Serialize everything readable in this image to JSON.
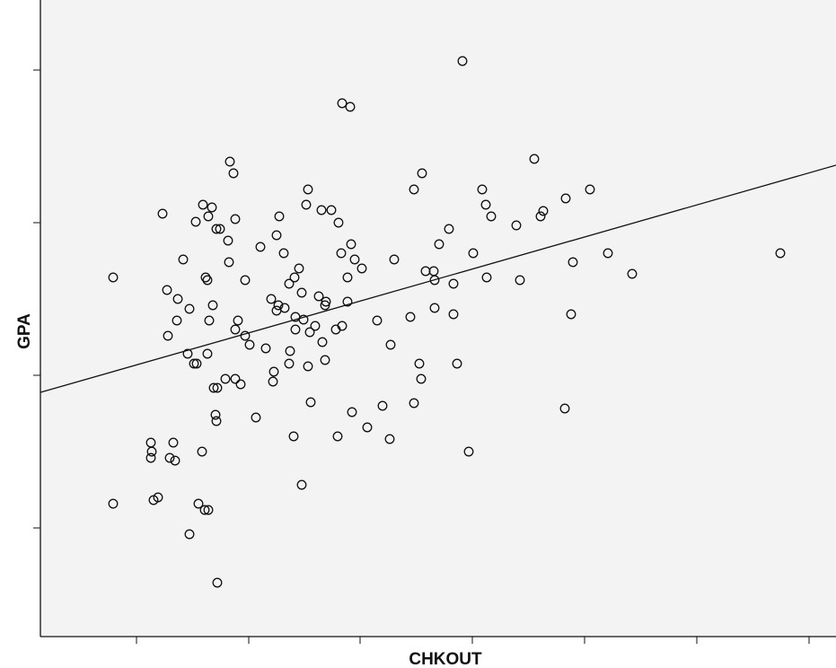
{
  "chart_data": {
    "type": "scatter",
    "xlabel": "CHKOUT",
    "ylabel": "GPA",
    "grid": false,
    "x_ticks": 7,
    "y_ticks": 4,
    "colors": {
      "plot_background": "#f3f3f3",
      "marker": "#111111",
      "line": "#111111"
    },
    "fit_line": {
      "points": [
        [
          45,
          437
        ],
        [
          931,
          184
        ]
      ]
    },
    "points": [
      [
        515,
        68
      ],
      [
        381,
        115
      ],
      [
        390,
        119
      ],
      [
        256,
        180
      ],
      [
        260,
        193
      ],
      [
        595,
        177
      ],
      [
        470,
        193
      ],
      [
        461,
        211
      ],
      [
        343,
        211
      ],
      [
        537,
        211
      ],
      [
        657,
        211
      ],
      [
        630,
        221
      ],
      [
        541,
        228
      ],
      [
        341,
        228
      ],
      [
        226,
        228
      ],
      [
        236,
        231
      ],
      [
        358,
        234
      ],
      [
        369,
        234
      ],
      [
        605,
        235
      ],
      [
        181,
        238
      ],
      [
        311,
        241
      ],
      [
        232,
        241
      ],
      [
        262,
        244
      ],
      [
        547,
        241
      ],
      [
        602,
        241
      ],
      [
        218,
        247
      ],
      [
        377,
        248
      ],
      [
        575,
        251
      ],
      [
        241,
        255
      ],
      [
        245,
        255
      ],
      [
        500,
        255
      ],
      [
        308,
        262
      ],
      [
        254,
        268
      ],
      [
        391,
        272
      ],
      [
        489,
        272
      ],
      [
        290,
        275
      ],
      [
        380,
        282
      ],
      [
        316,
        282
      ],
      [
        527,
        282
      ],
      [
        677,
        282
      ],
      [
        869,
        282
      ],
      [
        204,
        289
      ],
      [
        395,
        289
      ],
      [
        439,
        289
      ],
      [
        255,
        292
      ],
      [
        638,
        292
      ],
      [
        403,
        299
      ],
      [
        333,
        299
      ],
      [
        474,
        302
      ],
      [
        483,
        302
      ],
      [
        126,
        309
      ],
      [
        229,
        309
      ],
      [
        231,
        312
      ],
      [
        273,
        312
      ],
      [
        328,
        309
      ],
      [
        387,
        309
      ],
      [
        484,
        312
      ],
      [
        542,
        309
      ],
      [
        579,
        312
      ],
      [
        505,
        316
      ],
      [
        704,
        305
      ],
      [
        322,
        316
      ],
      [
        186,
        323
      ],
      [
        355,
        330
      ],
      [
        336,
        326
      ],
      [
        302,
        333
      ],
      [
        198,
        333
      ],
      [
        363,
        336
      ],
      [
        387,
        336
      ],
      [
        310,
        340
      ],
      [
        237,
        340
      ],
      [
        317,
        343
      ],
      [
        211,
        344
      ],
      [
        308,
        346
      ],
      [
        362,
        340
      ],
      [
        484,
        343
      ],
      [
        329,
        353
      ],
      [
        338,
        356
      ],
      [
        197,
        357
      ],
      [
        233,
        357
      ],
      [
        265,
        357
      ],
      [
        420,
        357
      ],
      [
        457,
        353
      ],
      [
        505,
        350
      ],
      [
        636,
        350
      ],
      [
        351,
        363
      ],
      [
        262,
        367
      ],
      [
        329,
        367
      ],
      [
        345,
        370
      ],
      [
        374,
        367
      ],
      [
        381,
        363
      ],
      [
        187,
        374
      ],
      [
        273,
        374
      ],
      [
        359,
        381
      ],
      [
        278,
        384
      ],
      [
        435,
        384
      ],
      [
        296,
        388
      ],
      [
        209,
        394
      ],
      [
        231,
        394
      ],
      [
        323,
        391
      ],
      [
        216,
        405
      ],
      [
        219,
        405
      ],
      [
        322,
        405
      ],
      [
        343,
        408
      ],
      [
        362,
        401
      ],
      [
        467,
        405
      ],
      [
        509,
        405
      ],
      [
        305,
        414
      ],
      [
        251,
        422
      ],
      [
        262,
        422
      ],
      [
        304,
        425
      ],
      [
        268,
        428
      ],
      [
        469,
        422
      ],
      [
        238,
        432
      ],
      [
        242,
        432
      ],
      [
        346,
        448
      ],
      [
        426,
        452
      ],
      [
        461,
        449
      ],
      [
        629,
        455
      ],
      [
        240,
        462
      ],
      [
        392,
        459
      ],
      [
        285,
        465
      ],
      [
        241,
        469
      ],
      [
        409,
        476
      ],
      [
        327,
        486
      ],
      [
        376,
        486
      ],
      [
        434,
        489
      ],
      [
        168,
        493
      ],
      [
        193,
        493
      ],
      [
        225,
        503
      ],
      [
        169,
        503
      ],
      [
        522,
        503
      ],
      [
        168,
        510
      ],
      [
        189,
        510
      ],
      [
        195,
        513
      ],
      [
        336,
        540
      ],
      [
        176,
        554
      ],
      [
        171,
        557
      ],
      [
        126,
        561
      ],
      [
        221,
        561
      ],
      [
        228,
        568
      ],
      [
        232,
        568
      ],
      [
        211,
        595
      ],
      [
        242,
        649
      ]
    ]
  }
}
